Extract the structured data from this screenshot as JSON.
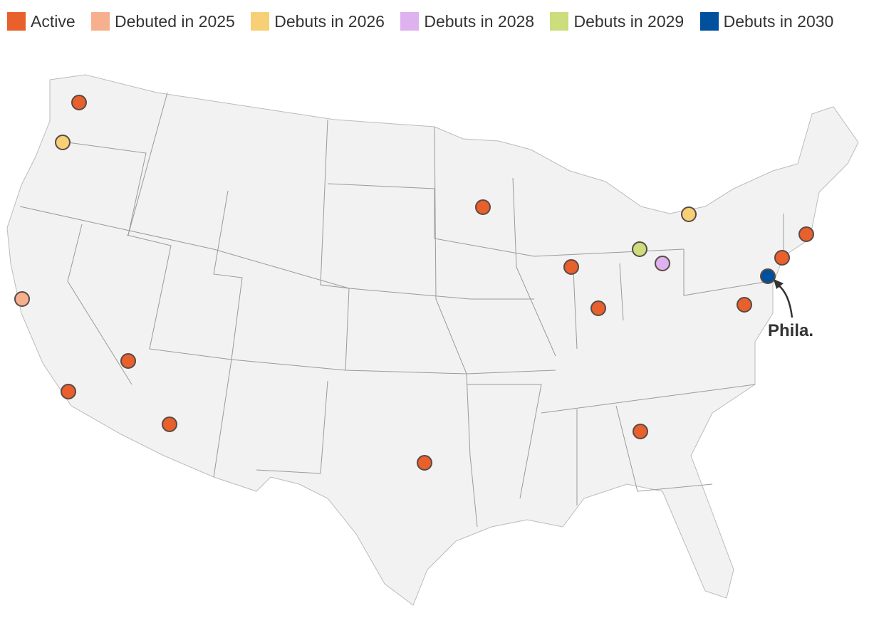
{
  "legend": {
    "items": [
      {
        "label": "Active",
        "color": "#e8602c"
      },
      {
        "label": "Debuted in 2025",
        "color": "#f7b08e"
      },
      {
        "label": "Debuts in 2026",
        "color": "#f6cf76"
      },
      {
        "label": "Debuts in 2028",
        "color": "#ddb2ee"
      },
      {
        "label": "Debuts in 2029",
        "color": "#cbdd7c"
      },
      {
        "label": "Debuts in 2030",
        "color": "#00509d"
      }
    ]
  },
  "annotation": {
    "text": "Phila."
  }
}
